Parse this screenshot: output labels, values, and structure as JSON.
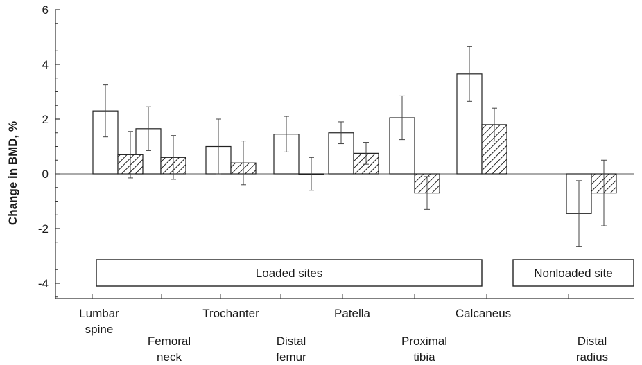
{
  "chart_data": {
    "type": "bar",
    "ylabel": "Change in BMD, %",
    "xlabel": "",
    "ylim": [
      -4.5,
      6
    ],
    "yticks": [
      -4,
      -2,
      0,
      2,
      4,
      6
    ],
    "categories": [
      [
        "Lumbar",
        "spine"
      ],
      [
        "Femoral",
        "neck"
      ],
      [
        "Trochanter"
      ],
      [
        "Distal",
        "femur"
      ],
      [
        "Patella"
      ],
      [
        "Proximal",
        "tibia"
      ],
      [
        "Calcaneus"
      ],
      [
        "Distal",
        "radius"
      ]
    ],
    "series": [
      {
        "fill": "open",
        "values": [
          2.3,
          1.65,
          1.0,
          1.45,
          1.5,
          2.05,
          3.65,
          -1.45
        ],
        "error": [
          0.95,
          0.8,
          1.0,
          0.65,
          0.4,
          0.8,
          1.0,
          1.2
        ]
      },
      {
        "fill": "hatched",
        "values": [
          0.7,
          0.6,
          0.4,
          0.0,
          0.75,
          -0.7,
          1.8,
          -0.7
        ],
        "error": [
          0.85,
          0.8,
          0.8,
          0.6,
          0.4,
          0.6,
          0.6,
          1.2
        ]
      }
    ],
    "groups": [
      {
        "label": "Loaded sites",
        "categories": [
          0,
          6
        ]
      },
      {
        "label": "Nonloaded site",
        "categories": [
          7,
          7
        ]
      }
    ],
    "colors": {
      "axis": "#333333",
      "bar_stroke": "#222222",
      "bar_fill": "#ffffff"
    }
  }
}
